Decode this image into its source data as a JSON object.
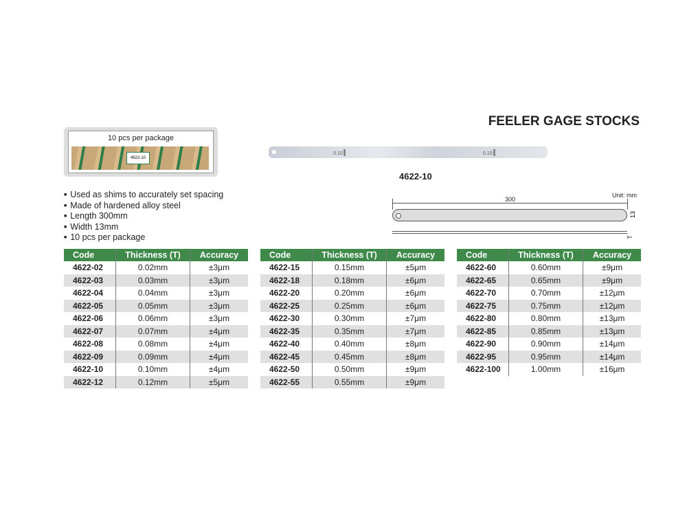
{
  "title": "FEELER GAGE STOCKS",
  "package": {
    "label": "10 pcs per package",
    "tag": "4622-10"
  },
  "features": [
    "Used as shims to accurately set spacing",
    "Made of hardened alloy steel",
    "Length 300mm",
    "Width 13mm",
    "10 pcs per package"
  ],
  "product": {
    "blade_marks": [
      "0.10",
      "0.10"
    ],
    "model": "4622-10"
  },
  "drawing": {
    "unit": "Unit: mm",
    "length": "300",
    "width": "13",
    "thickness": "T"
  },
  "table_headers": [
    "Code",
    "Thickness (T)",
    "Accuracy"
  ],
  "colors": {
    "header_green": "#3f8a4a",
    "row_gray": "#e0e0e0"
  },
  "tables": [
    [
      [
        "4622-02",
        "0.02mm",
        "±3μm"
      ],
      [
        "4622-03",
        "0.03mm",
        "±3μm"
      ],
      [
        "4622-04",
        "0.04mm",
        "±3μm"
      ],
      [
        "4622-05",
        "0.05mm",
        "±3μm"
      ],
      [
        "4622-06",
        "0.06mm",
        "±3μm"
      ],
      [
        "4622-07",
        "0.07mm",
        "±4μm"
      ],
      [
        "4622-08",
        "0.08mm",
        "±4μm"
      ],
      [
        "4622-09",
        "0.09mm",
        "±4μm"
      ],
      [
        "4622-10",
        "0.10mm",
        "±4μm"
      ],
      [
        "4622-12",
        "0.12mm",
        "±5μm"
      ]
    ],
    [
      [
        "4622-15",
        "0.15mm",
        "±5μm"
      ],
      [
        "4622-18",
        "0.18mm",
        "±6μm"
      ],
      [
        "4622-20",
        "0.20mm",
        "±6μm"
      ],
      [
        "4622-25",
        "0.25mm",
        "±6μm"
      ],
      [
        "4622-30",
        "0.30mm",
        "±7μm"
      ],
      [
        "4622-35",
        "0.35mm",
        "±7μm"
      ],
      [
        "4622-40",
        "0.40mm",
        "±8μm"
      ],
      [
        "4622-45",
        "0.45mm",
        "±8μm"
      ],
      [
        "4622-50",
        "0.50mm",
        "±9μm"
      ],
      [
        "4622-55",
        "0.55mm",
        "±9μm"
      ]
    ],
    [
      [
        "4622-60",
        "0.60mm",
        "±9μm"
      ],
      [
        "4622-65",
        "0.65mm",
        "±9μm"
      ],
      [
        "4622-70",
        "0.70mm",
        "±12μm"
      ],
      [
        "4622-75",
        "0.75mm",
        "±12μm"
      ],
      [
        "4622-80",
        "0.80mm",
        "±13μm"
      ],
      [
        "4622-85",
        "0.85mm",
        "±13μm"
      ],
      [
        "4622-90",
        "0.90mm",
        "±14μm"
      ],
      [
        "4622-95",
        "0.95mm",
        "±14μm"
      ],
      [
        "4622-100",
        "1.00mm",
        "±16μm"
      ]
    ]
  ]
}
